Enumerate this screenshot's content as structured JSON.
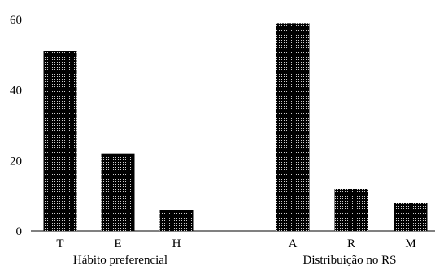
{
  "chart_data": {
    "type": "bar",
    "title": "",
    "ylabel": "",
    "ylim": [
      0,
      60
    ],
    "yticks": [
      0,
      20,
      40,
      60
    ],
    "grid": false,
    "legend": "none",
    "bar_color": "#000000",
    "bar_pattern": "dotted",
    "groups": [
      {
        "label": "Hábito preferencial",
        "categories": [
          "T",
          "E",
          "H"
        ],
        "values": [
          51,
          22,
          6
        ]
      },
      {
        "label": "Distribuição no RS",
        "categories": [
          "A",
          "R",
          "M"
        ],
        "values": [
          59,
          12,
          8
        ]
      }
    ]
  }
}
